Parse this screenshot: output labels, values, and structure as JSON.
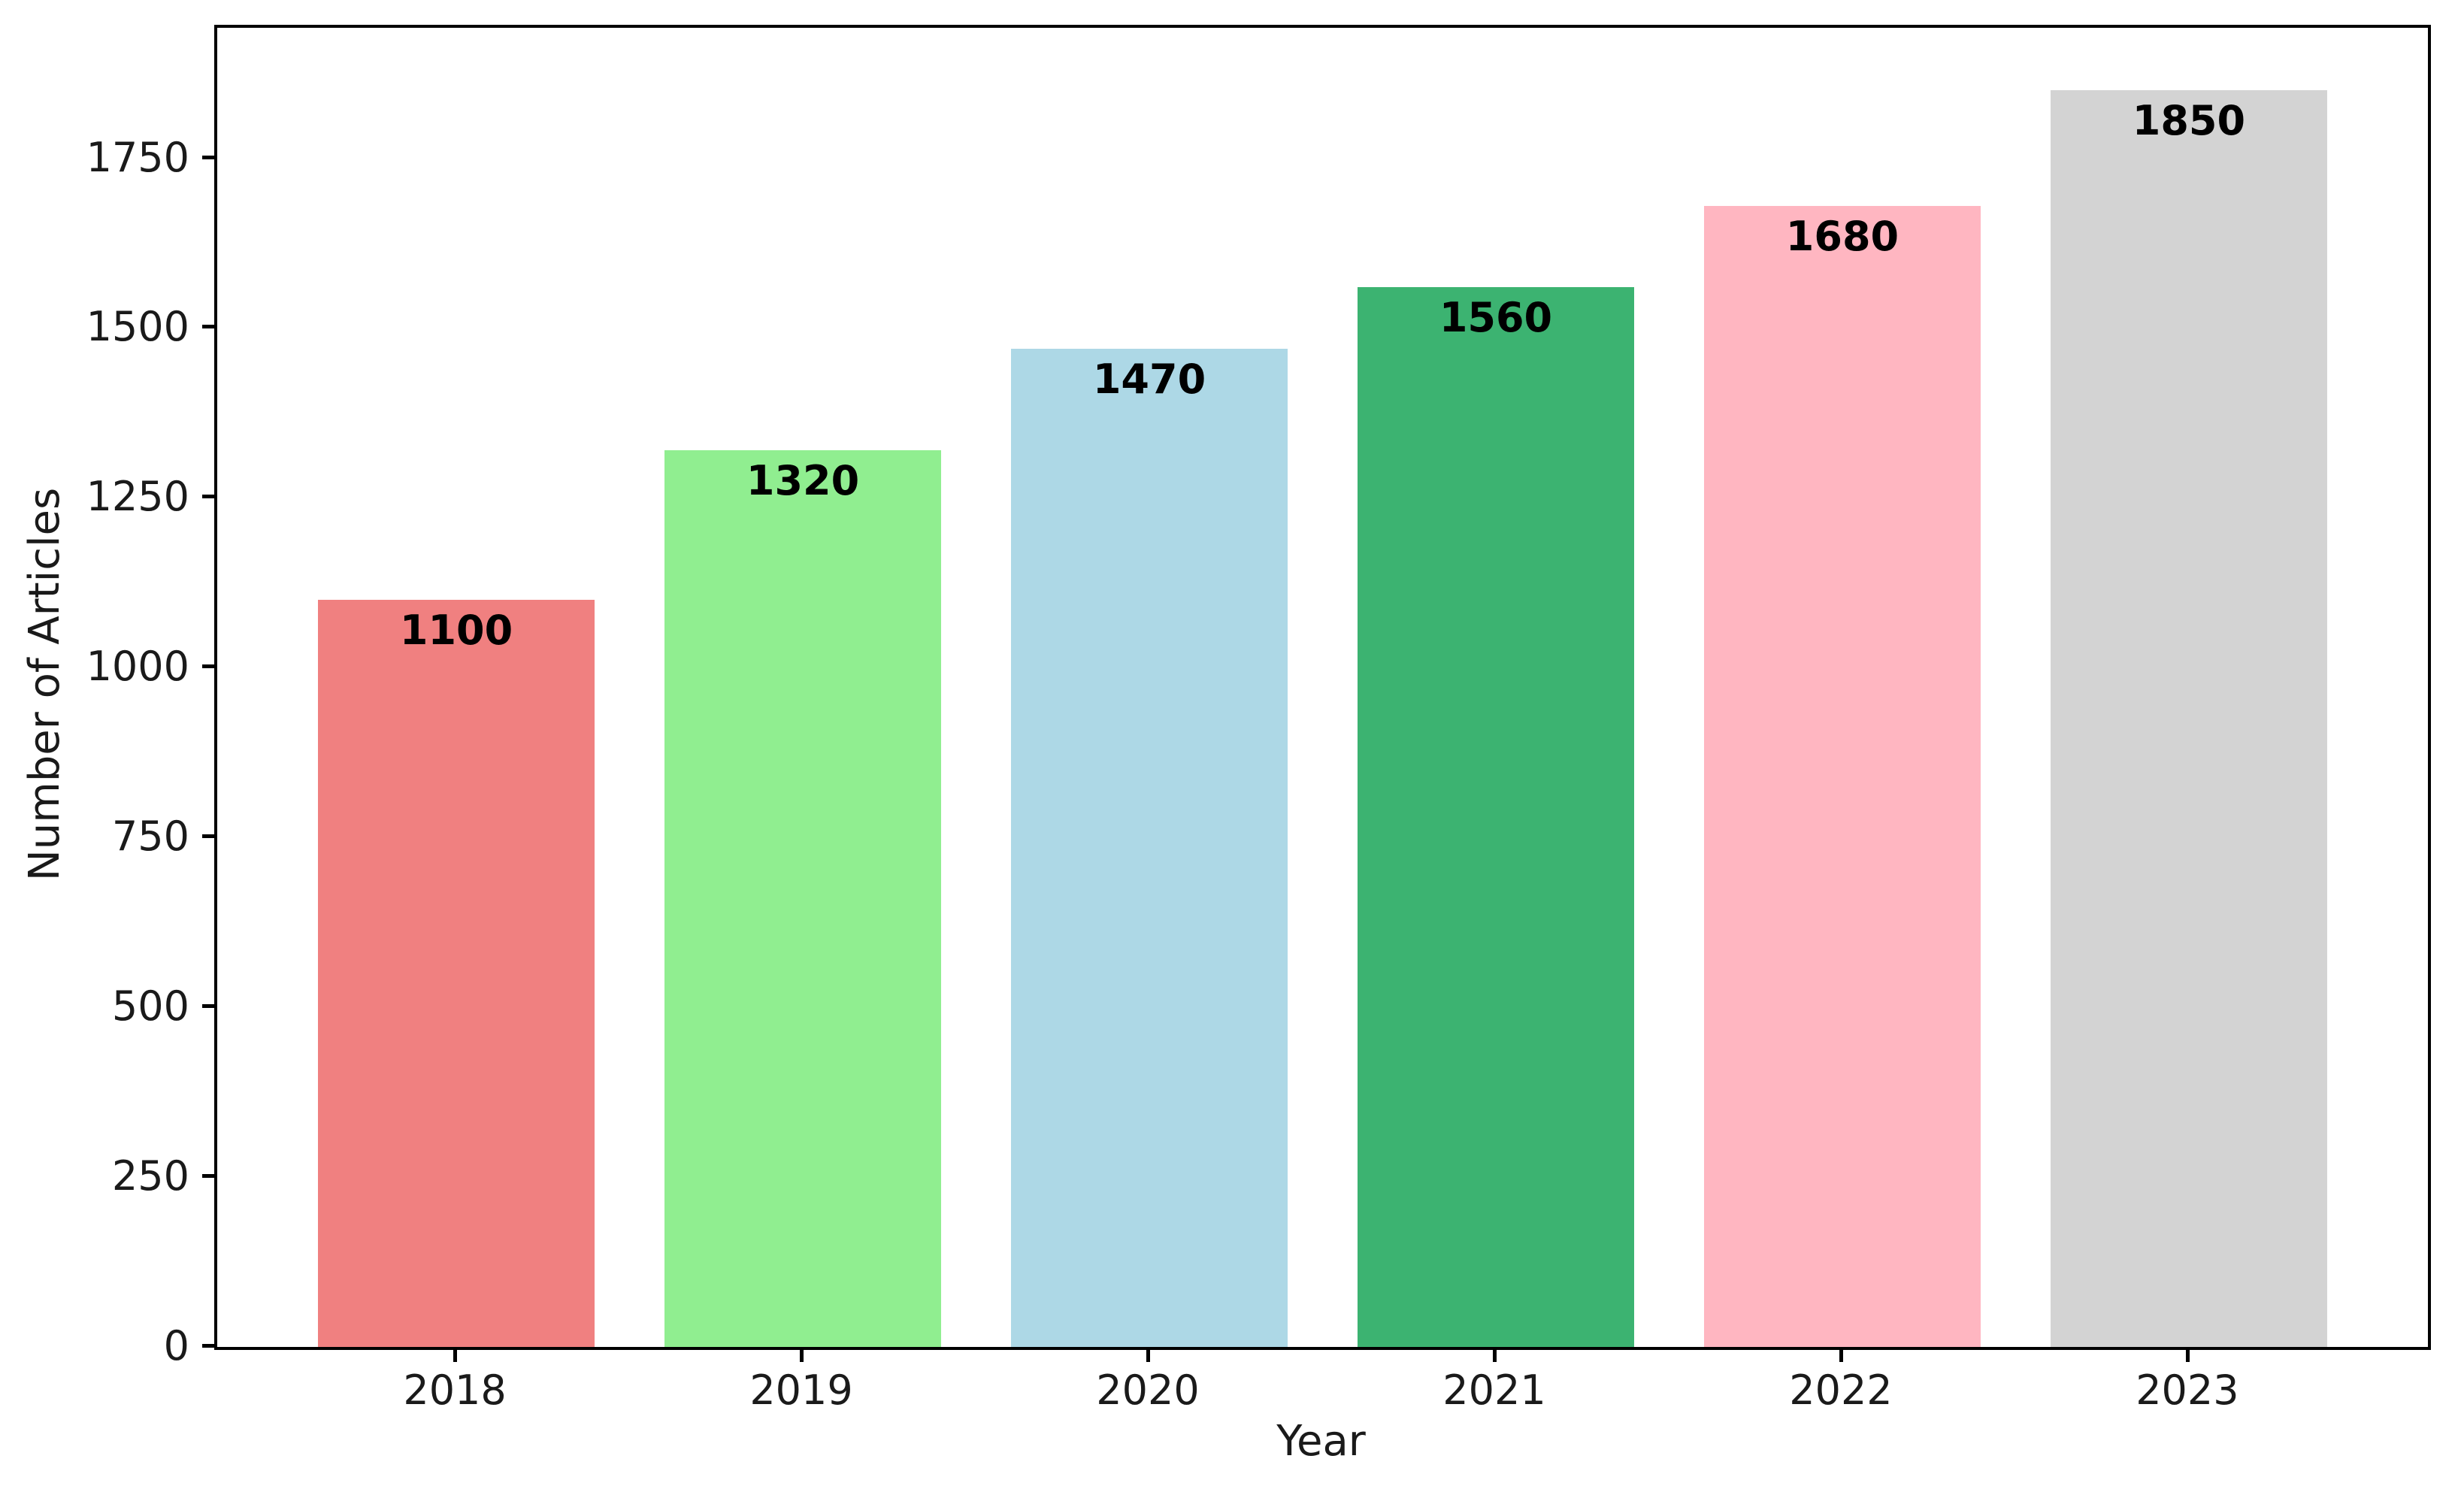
{
  "chart_data": {
    "type": "bar",
    "title": "",
    "categories": [
      "2018",
      "2019",
      "2020",
      "2021",
      "2022",
      "2023"
    ],
    "values": [
      1100,
      1320,
      1470,
      1560,
      1680,
      1850
    ],
    "value_labels": [
      "1100",
      "1320",
      "1470",
      "1560",
      "1680",
      "1850"
    ],
    "bar_colors": [
      "#F08080",
      "#90EE90",
      "#ADD8E6",
      "#3CB371",
      "#FFB6C1",
      "#D3D3D3"
    ],
    "xlabel": "Year",
    "ylabel": "Number of Articles",
    "yticks": [
      0,
      250,
      500,
      750,
      1000,
      1250,
      1500,
      1750
    ],
    "ylim": [
      0,
      1942
    ],
    "grid": false,
    "legend_position": "none"
  }
}
